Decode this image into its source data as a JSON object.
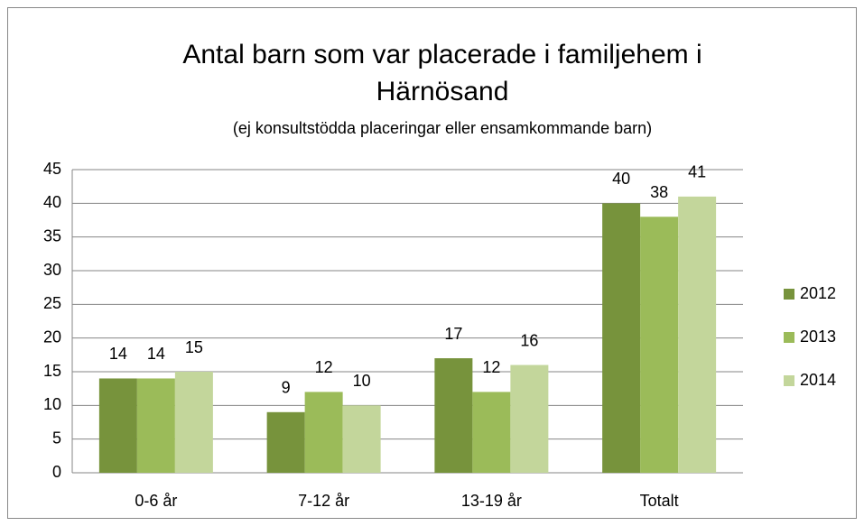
{
  "chart_data": {
    "type": "bar",
    "title": "Antal barn som var placerade i familjehem i Härnösand",
    "subtitle": "(ej konsultstödda placeringar eller ensamkommande barn)",
    "categories": [
      "0-6 år",
      "7-12 år",
      "13-19 år",
      "Totalt"
    ],
    "series": [
      {
        "name": "2012",
        "color": "#77933c",
        "values": [
          14,
          9,
          17,
          40
        ]
      },
      {
        "name": "2013",
        "color": "#9bbb59",
        "values": [
          14,
          12,
          12,
          38
        ]
      },
      {
        "name": "2014",
        "color": "#c3d69b",
        "values": [
          15,
          10,
          16,
          41
        ]
      }
    ],
    "ylim": [
      0,
      45
    ],
    "yticks": [
      0,
      5,
      10,
      15,
      20,
      25,
      30,
      35,
      40,
      45
    ],
    "grid": true,
    "legend": "right"
  }
}
